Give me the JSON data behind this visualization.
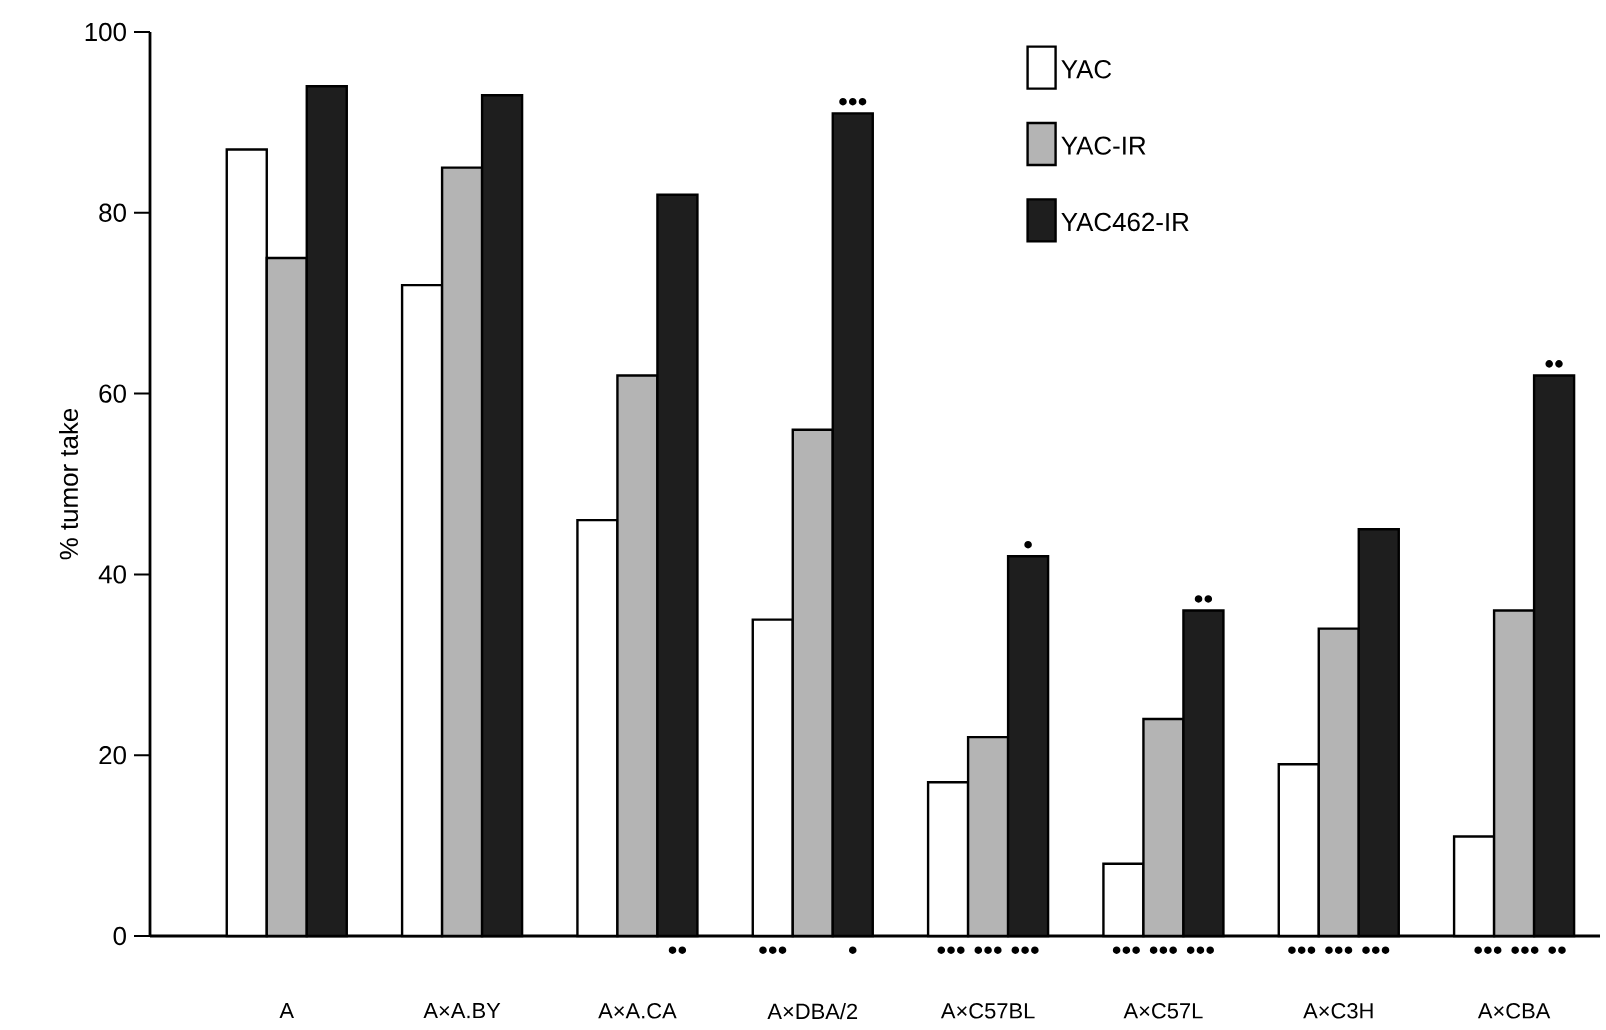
{
  "chart_data": {
    "type": "bar",
    "ylabel": "% tumor take",
    "categories": [
      "A",
      "A×A.BY",
      "A×A.CA",
      "A×DBA/2",
      "A×C57BL",
      "A×C57L",
      "A×C3H",
      "A×CBA"
    ],
    "series": [
      {
        "name": "YAC",
        "color": "#ffffff",
        "values": [
          87,
          72,
          46,
          35,
          17,
          8,
          19,
          11
        ]
      },
      {
        "name": "YAC-IR",
        "color": "#b4b4b4",
        "values": [
          75,
          85,
          62,
          56,
          22,
          24,
          34,
          36
        ]
      },
      {
        "name": "YAC462-IR",
        "color": "#1e1e1e",
        "values": [
          94,
          93,
          82,
          91,
          42,
          36,
          45,
          62
        ]
      }
    ],
    "ylim": [
      0,
      100
    ],
    "yticks": [
      0,
      20,
      40,
      60,
      80,
      100
    ],
    "legend": "top right",
    "grid": false,
    "annotations": [
      "•••",
      "•",
      "••",
      "••",
      "••",
      "•••",
      "•",
      "••• ••• •••",
      "••• ••• •••",
      "••• ••• •••",
      "••• ••• ••"
    ]
  }
}
